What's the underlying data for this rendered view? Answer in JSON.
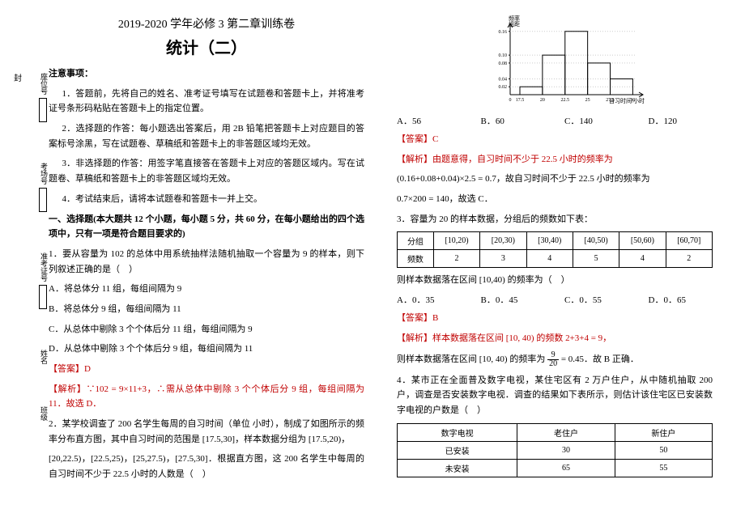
{
  "header": {
    "line1": "2019-2020 学年必修 3 第二章训练卷",
    "line2": "统计（二）"
  },
  "side": {
    "chars": [
      "封",
      "密",
      "不",
      "订",
      "装",
      "只",
      "卷",
      "此"
    ],
    "labels": [
      "座位号",
      "考场号",
      "准考证号",
      "姓名",
      "班级"
    ]
  },
  "notice": {
    "title": "注意事项：",
    "items": [
      "1．答题前，先将自己的姓名、准考证号填写在试题卷和答题卡上，并将准考证号条形码粘贴在答题卡上的指定位置。",
      "2．选择题的作答：每小题选出答案后，用 2B 铅笔把答题卡上对应题目的答案标号涂黑，写在试题卷、草稿纸和答题卡上的非答题区域均无效。",
      "3．非选择题的作答：用签字笔直接答在答题卡上对应的答题区域内。写在试题卷、草稿纸和答题卡上的非答题区域均无效。",
      "4．考试结束后，请将本试题卷和答题卡一并上交。"
    ]
  },
  "section1_title": "一、选择题(本大题共 12 个小题，每小题 5 分，共 60 分，在每小题给出的四个选项中，只有一项是符合题目要求的)",
  "q1": {
    "stem": "1．要从容量为 102 的总体中用系统抽样法随机抽取一个容量为 9 的样本，则下列叙述正确的是（　）",
    "A": "A．将总体分 11 组，每组间隔为 9",
    "B": "B．将总体分 9 组，每组间隔为 11",
    "C": "C．从总体中剔除 3 个个体后分 11 组，每组间隔为 9",
    "D": "D．从总体中剔除 3 个个体后分 9 组，每组间隔为 11",
    "ans": "【答案】D",
    "exp": "【解析】∵102 = 9×11+3，∴需从总体中剔除 3 个个体后分 9 组，每组间隔为 11．故选 D．"
  },
  "q2": {
    "stem1": "2．某学校调查了 200 名学生每周的自习时间（单位 小时），制成了如图所示的频率分布直方图，其中自习时间的范围是 [17.5,30]，样本数据分组为 [17.5,20)，",
    "stem2": "[20,22.5)，[22.5,25)，[25,27.5)，[27.5,30]．根据直方图，这 200 名学生中每周的自习时间不少于 22.5 小时的人数是（　）",
    "A": "A．56",
    "B": "B．60",
    "C": "C．140",
    "D": "D．120",
    "ans": "【答案】C",
    "exp1": "【解析】由题意得，自习时间不少于 22.5 小时的频率为",
    "exp2": "(0.16+0.08+0.04)×2.5 = 0.7，故自习时间不少于 22.5 小时的频率为",
    "exp3": "0.7×200 = 140，故选 C．"
  },
  "chart": {
    "ylabel": "频率\n组距",
    "xlabel": "自习时间/小时",
    "xticks": [
      "0",
      "17.5",
      "20",
      "22.5",
      "25",
      "27.5",
      "30"
    ],
    "yticks": [
      "0.02",
      "0.04",
      "0.08",
      "0.10",
      "0.16"
    ],
    "bars": [
      {
        "x": 17.5,
        "h": 0.02
      },
      {
        "x": 20,
        "h": 0.1
      },
      {
        "x": 22.5,
        "h": 0.16
      },
      {
        "x": 25,
        "h": 0.08
      },
      {
        "x": 27.5,
        "h": 0.04
      }
    ],
    "ymax": 0.18,
    "bar_width": 2.5,
    "axis_color": "#000",
    "bar_fill": "none",
    "bar_stroke": "#000"
  },
  "q3": {
    "stem": "3．容量为 20 的样本数据，分组后的频数如下表：",
    "table_head": [
      "分组",
      "[10,20)",
      "[20,30)",
      "[30,40)",
      "[40,50)",
      "[50,60)",
      "[60,70]"
    ],
    "table_row": [
      "频数",
      "2",
      "3",
      "4",
      "5",
      "4",
      "2"
    ],
    "after": "则样本数据落在区间 [10,40) 的频率为（　）",
    "A": "A．0．35",
    "B": "B．0．45",
    "C": "C．0．55",
    "D": "D．0．65",
    "ans": "【答案】B",
    "exp1": "【解析】样本数据落在区间 [10, 40) 的频数 2+3+4 = 9，",
    "exp2_pre": "则样本数据落在区间 [10, 40) 的频率为 ",
    "exp2_num": "9",
    "exp2_den": "20",
    "exp2_post": " = 0.45．故 B 正确．"
  },
  "q4": {
    "stem": "4．某市正在全面普及数字电视，某住宅区有 2 万户住户，从中随机抽取 200 户，调查是否安装数字电视．调查的结果如下表所示，则估计该住宅区已安装数字电视的户数是（　）",
    "th": [
      "数字电视",
      "老住户",
      "新住户"
    ],
    "r1": [
      "已安装",
      "30",
      "50"
    ],
    "r2": [
      "未安装",
      "65",
      "55"
    ]
  }
}
